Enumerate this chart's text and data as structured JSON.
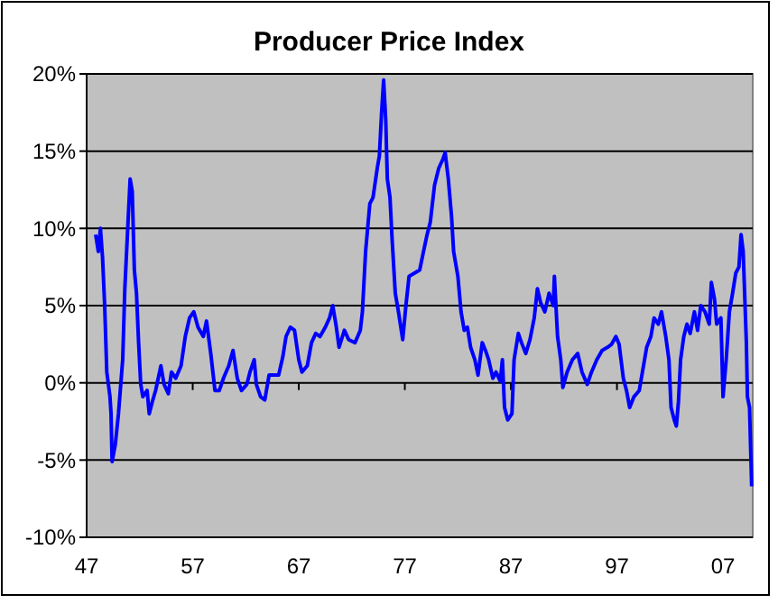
{
  "chart_data": {
    "type": "line",
    "title": "Producer Price Index",
    "grid": "y",
    "xlim": [
      1947,
      2009.8
    ],
    "xticks": [
      {
        "value": 1947,
        "label": "47"
      },
      {
        "value": 1957,
        "label": "57"
      },
      {
        "value": 1967,
        "label": "67"
      },
      {
        "value": 1977,
        "label": "77"
      },
      {
        "value": 1987,
        "label": "87"
      },
      {
        "value": 1997,
        "label": "97"
      },
      {
        "value": 2007,
        "label": "07"
      }
    ],
    "ylim": [
      -10,
      20
    ],
    "yticks": [
      {
        "value": -10,
        "label": "-10%"
      },
      {
        "value": -5,
        "label": "-5%"
      },
      {
        "value": 0,
        "label": "0%"
      },
      {
        "value": 5,
        "label": "5%"
      },
      {
        "value": 10,
        "label": "10%"
      },
      {
        "value": 15,
        "label": "15%"
      },
      {
        "value": 20,
        "label": "20%"
      }
    ],
    "series": [
      {
        "color": "#0000ff",
        "x": [
          1947.85,
          1948.1,
          1948.3,
          1948.5,
          1948.7,
          1948.9,
          1949.2,
          1949.3,
          1949.4,
          1949.7,
          1950.0,
          1950.4,
          1950.6,
          1950.9,
          1951.1,
          1951.3,
          1951.5,
          1951.7,
          1951.9,
          1952.1,
          1952.3,
          1952.7,
          1952.9,
          1953.2,
          1953.5,
          1954.0,
          1954.3,
          1954.7,
          1955.0,
          1955.4,
          1955.9,
          1956.3,
          1956.7,
          1957.1,
          1957.5,
          1958.0,
          1958.3,
          1958.7,
          1959.1,
          1959.5,
          1959.9,
          1960.4,
          1960.8,
          1961.2,
          1961.6,
          1962.1,
          1962.4,
          1962.8,
          1963.0,
          1963.4,
          1963.8,
          1964.2,
          1964.7,
          1965.1,
          1965.5,
          1965.8,
          1966.2,
          1966.6,
          1967.0,
          1967.3,
          1967.8,
          1968.2,
          1968.6,
          1969.0,
          1969.5,
          1969.9,
          1970.2,
          1970.5,
          1970.8,
          1971.3,
          1971.7,
          1972.3,
          1972.8,
          1973.0,
          1973.3,
          1973.7,
          1974.0,
          1974.4,
          1974.6,
          1974.8,
          1975.0,
          1975.2,
          1975.35,
          1975.6,
          1975.8,
          1976.1,
          1976.4,
          1976.8,
          1977.1,
          1977.4,
          1977.9,
          1978.4,
          1978.7,
          1979.1,
          1979.4,
          1979.8,
          1980.2,
          1980.6,
          1980.8,
          1981.1,
          1981.4,
          1981.6,
          1982.0,
          1982.3,
          1982.6,
          1982.9,
          1983.2,
          1983.6,
          1983.9,
          1984.3,
          1984.6,
          1984.9,
          1985.3,
          1985.6,
          1986.0,
          1986.2,
          1986.4,
          1986.7,
          1987.1,
          1987.3,
          1987.7,
          1988.0,
          1988.4,
          1988.8,
          1989.2,
          1989.5,
          1989.8,
          1990.2,
          1990.6,
          1991.0,
          1991.1,
          1991.4,
          1991.7,
          1991.9,
          1992.3,
          1992.8,
          1993.3,
          1993.7,
          1994.2,
          1994.6,
          1995.1,
          1995.6,
          1996.1,
          1996.5,
          1996.9,
          1997.2,
          1997.6,
          1997.9,
          1998.2,
          1998.6,
          1999.1,
          1999.5,
          1999.8,
          2000.2,
          2000.5,
          2000.9,
          2001.2,
          2001.6,
          2001.9,
          2002.1,
          2002.4,
          2002.6,
          2002.8,
          2003.0,
          2003.3,
          2003.6,
          2003.9,
          2004.3,
          2004.6,
          2004.9,
          2005.3,
          2005.7,
          2005.9,
          2006.2,
          2006.4,
          2006.8,
          2007.0,
          2007.3,
          2007.6,
          2007.9,
          2008.2,
          2008.5,
          2008.7,
          2008.9,
          2009.2,
          2009.3,
          2009.5,
          2009.7
        ],
        "values": [
          9.6,
          8.5,
          10,
          8.1,
          5,
          0.7,
          -0.9,
          -2,
          -5.1,
          -4,
          -2,
          1.5,
          6.1,
          10.4,
          13.2,
          12.4,
          7.3,
          5.8,
          2.6,
          -0.1,
          -0.9,
          -0.5,
          -2,
          -1.2,
          -0.5,
          1.1,
          -0.1,
          -0.7,
          0.7,
          0.3,
          1.1,
          3,
          4.2,
          4.6,
          3.6,
          3,
          4,
          1.9,
          -0.5,
          -0.5,
          0.3,
          1.1,
          2.1,
          0.3,
          -0.5,
          -0.1,
          0.7,
          1.5,
          -0.1,
          -0.9,
          -1.1,
          0.5,
          0.5,
          0.5,
          1.7,
          3,
          3.6,
          3.4,
          1.5,
          0.7,
          1.1,
          2.6,
          3.2,
          3,
          3.6,
          4.2,
          5,
          3.8,
          2.3,
          3.4,
          2.8,
          2.6,
          3.4,
          4.6,
          8.5,
          11.6,
          12,
          13.9,
          14.7,
          17.4,
          19.6,
          17,
          13.2,
          12,
          9.3,
          5.8,
          4.6,
          2.8,
          5,
          6.9,
          7.1,
          7.3,
          8.3,
          9.6,
          10.4,
          12.8,
          13.9,
          14.5,
          14.9,
          13.2,
          10.8,
          8.5,
          6.9,
          4.6,
          3.4,
          3.6,
          2.3,
          1.5,
          0.5,
          2.6,
          2.1,
          1.5,
          0.3,
          0.7,
          0.1,
          1.5,
          -1.6,
          -2.4,
          -2,
          1.5,
          3.2,
          2.6,
          1.9,
          2.8,
          4.2,
          6.1,
          5.2,
          4.6,
          5.8,
          5,
          6.9,
          3,
          1.5,
          -0.3,
          0.7,
          1.5,
          1.9,
          0.7,
          -0.1,
          0.7,
          1.5,
          2.1,
          2.3,
          2.5,
          3,
          2.5,
          0.3,
          -0.5,
          -1.6,
          -0.9,
          -0.5,
          1.1,
          2.3,
          3,
          4.2,
          3.8,
          4.6,
          3,
          1.5,
          -1.6,
          -2.4,
          -2.8,
          -1.2,
          1.5,
          3,
          3.8,
          3.2,
          4.6,
          3.4,
          5,
          4.6,
          3.8,
          6.5,
          5.4,
          3.8,
          4.2,
          -0.9,
          1.5,
          4.6,
          5.8,
          7.1,
          7.5,
          9.6,
          8.5,
          2.6,
          -0.9,
          -1.6,
          -6.7
        ]
      }
    ]
  }
}
